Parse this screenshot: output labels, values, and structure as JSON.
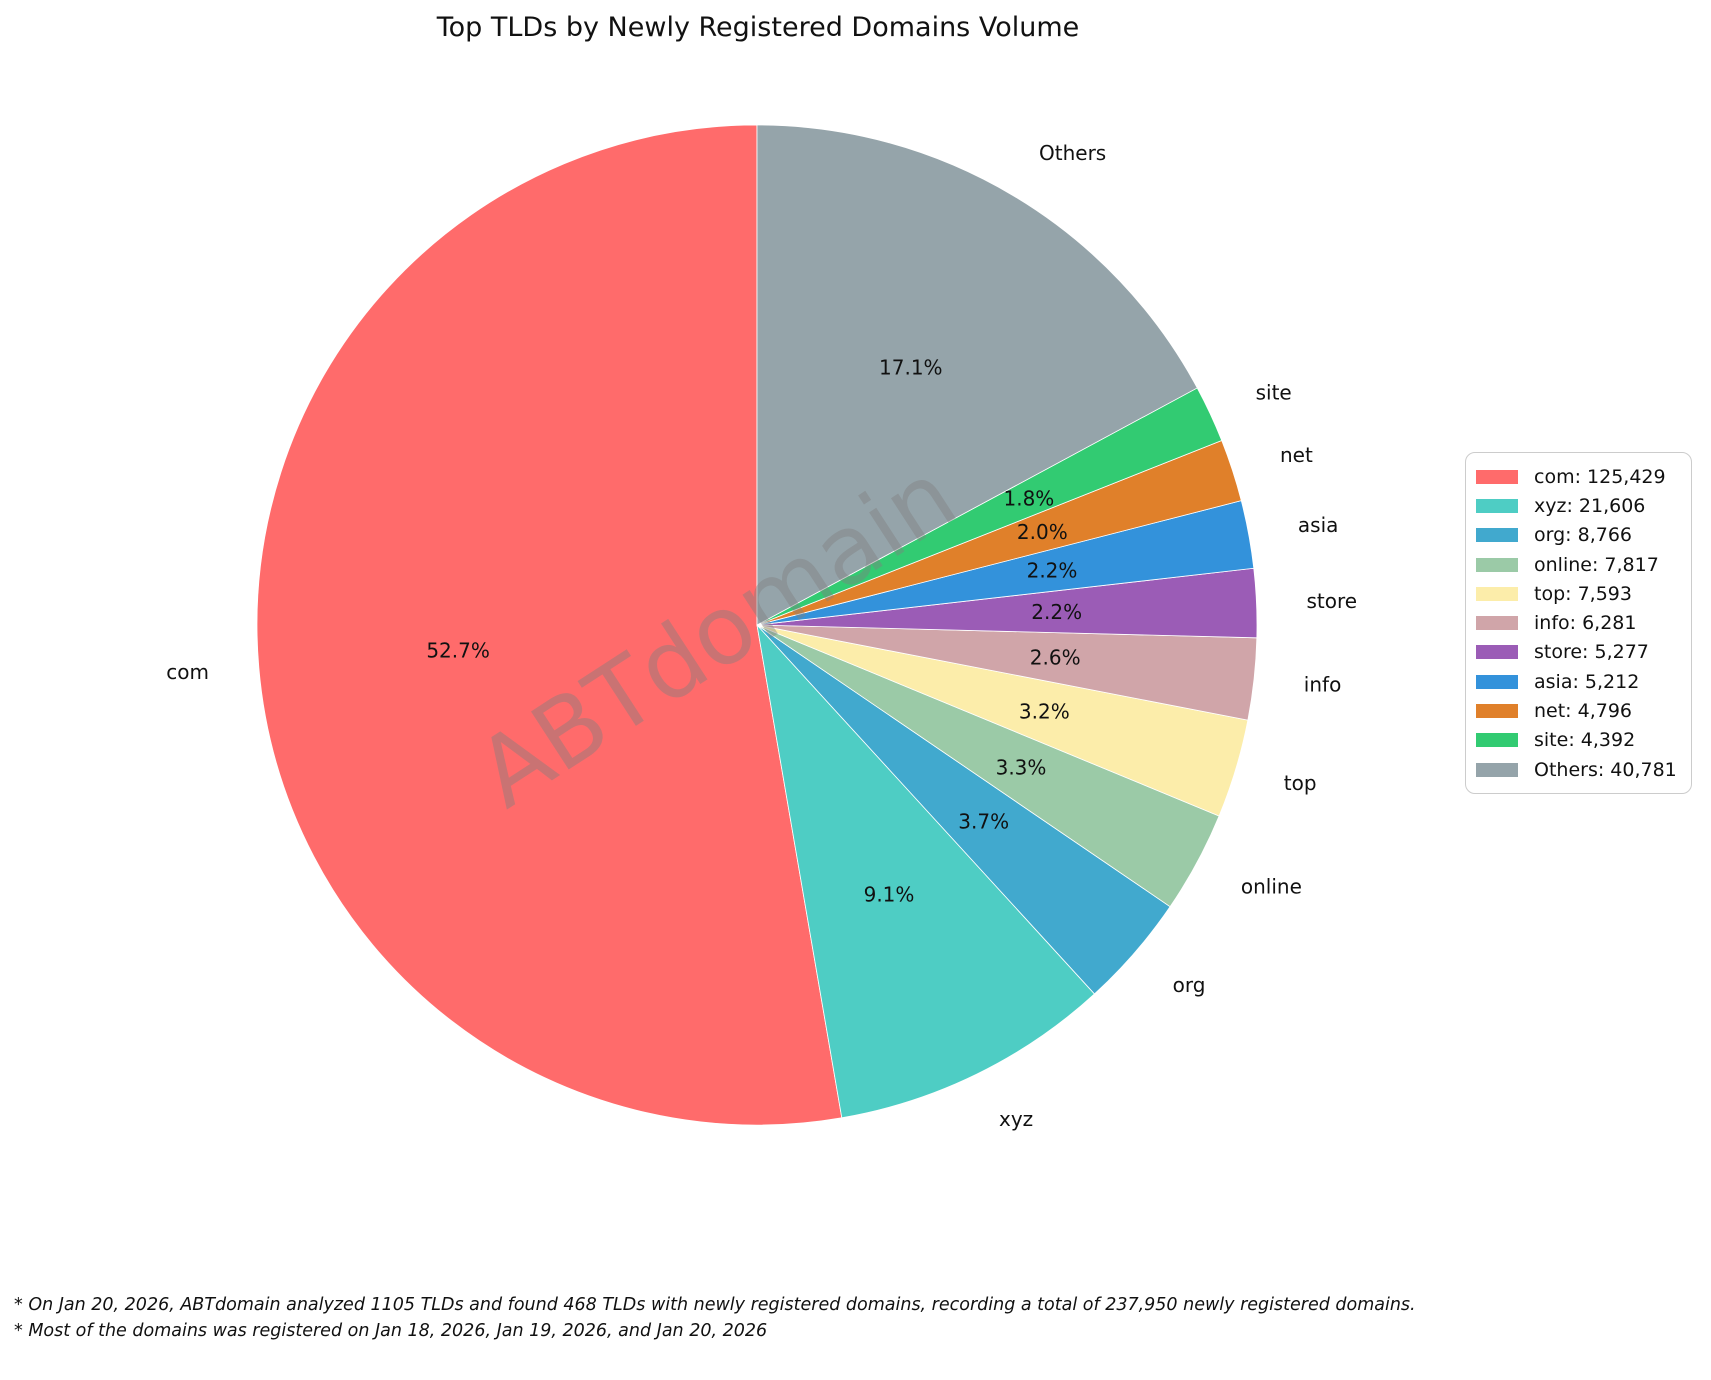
{
  "title": "Top TLDs by Newly Registered Domains Volume",
  "watermark": "ABTdomain",
  "footnotes": [
    "* On Jan 20, 2026, ABTdomain analyzed 1105 TLDs and found 468 TLDs with newly registered domains, recording a total of 237,950 newly registered domains.",
    "* Most of the domains was registered on Jan 18, 2026, Jan 19, 2026, and Jan 20, 2026"
  ],
  "chart_data": {
    "type": "pie",
    "title": "Top TLDs by Newly Registered Domains Volume",
    "categories": [
      "com",
      "xyz",
      "org",
      "online",
      "top",
      "info",
      "store",
      "asia",
      "net",
      "site",
      "Others"
    ],
    "values": [
      125429,
      21606,
      8766,
      7817,
      7593,
      6281,
      5277,
      5212,
      4796,
      4392,
      40781
    ],
    "percent_labels": [
      "52.7%",
      "9.1%",
      "3.7%",
      "3.3%",
      "3.2%",
      "2.6%",
      "2.2%",
      "2.2%",
      "2.0%",
      "1.8%",
      "17.1%"
    ],
    "legend_labels": [
      "com: 125,429",
      "xyz: 21,606",
      "org: 8,766",
      "online: 7,817",
      "top: 7,593",
      "info: 6,281",
      "store: 5,277",
      "asia: 5,212",
      "net: 4,796",
      "site: 4,392",
      "Others: 40,781"
    ],
    "colors": [
      "#FF6B6B",
      "#4ECDC4",
      "#41A9CE",
      "#9BCAA7",
      "#FCEDAA",
      "#D0A5A9",
      "#9B5CB6",
      "#3392DB",
      "#E0802A",
      "#32CB72",
      "#95A4AA"
    ],
    "total": 237950,
    "start_angle": 90,
    "counterclockwise": true,
    "legend_position": "center-right",
    "label_distance": 1.1,
    "pct_distance": 0.6
  }
}
